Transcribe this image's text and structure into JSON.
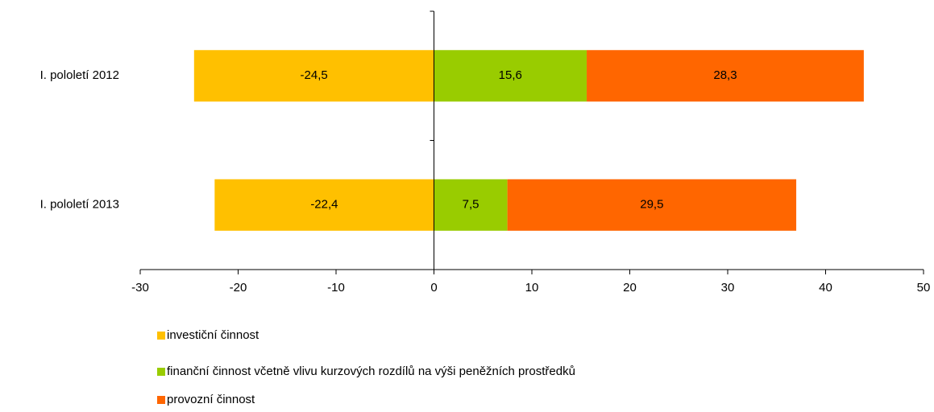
{
  "chart_data": {
    "type": "stacked-barh",
    "categories": [
      "I. pololetí 2012",
      "I. pololetí 2013"
    ],
    "series": [
      {
        "name": "investiční činnost",
        "color": "#FFC000",
        "values": [
          -24.5,
          -22.4
        ],
        "value_labels": [
          "-24,5",
          "-22,4"
        ]
      },
      {
        "name": "finanční činnost včetně vlivu kurzových rozdílů na výši peněžních prostředků",
        "color": "#99CC00",
        "values": [
          15.6,
          7.5
        ],
        "value_labels": [
          "15,6",
          "7,5"
        ]
      },
      {
        "name": "provozní činnost",
        "color": "#FF6600",
        "values": [
          28.3,
          29.5
        ],
        "value_labels": [
          "28,3",
          "29,5"
        ]
      }
    ],
    "xlim": [
      -30,
      50
    ],
    "xticks": [
      -30,
      -20,
      -10,
      0,
      10,
      20,
      30,
      40,
      50
    ],
    "grid": false,
    "legend": "bottom-left"
  }
}
